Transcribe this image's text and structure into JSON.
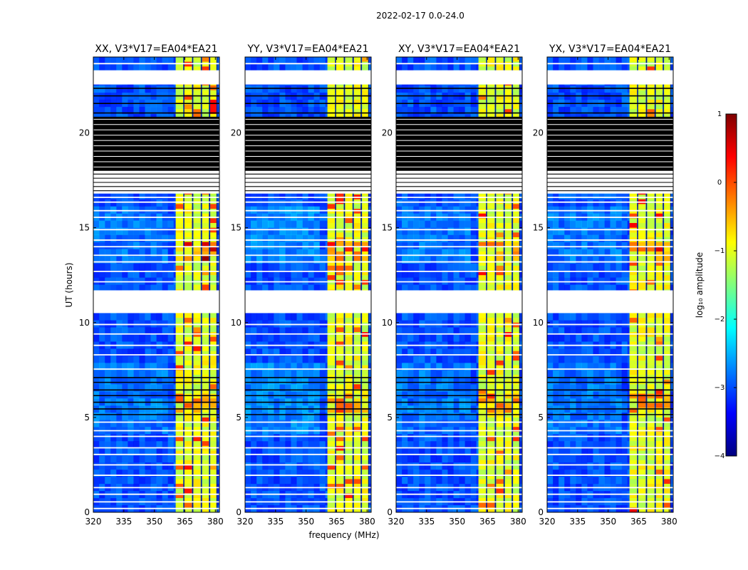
{
  "chart_data": {
    "type": "heatmap",
    "title": "2022-02-17 0.0-24.0",
    "xlabel": "frequency (MHz)",
    "ylabel": "UT (hours)",
    "xlim": [
      320,
      382
    ],
    "ylim": [
      0,
      24
    ],
    "xticks": [
      320,
      335,
      350,
      365,
      380
    ],
    "yticks": [
      0,
      5,
      10,
      15,
      20
    ],
    "colorbar": {
      "label": "log₁₀ amplitude",
      "range": [
        -4,
        1
      ],
      "ticks": [
        1,
        0,
        -1,
        -2,
        -3,
        -4
      ],
      "tick_labels": [
        "1",
        "0",
        "−1",
        "−2",
        "−3",
        "−4"
      ],
      "colormap": [
        "#00007f",
        "#0000ff",
        "#007fff",
        "#00ffff",
        "#7fff7f",
        "#ffff00",
        "#ff7f00",
        "#ff0000",
        "#7f0000"
      ]
    },
    "panels": [
      {
        "title": "XX, V3*V17=EA04*EA21",
        "baseline": "V3*V17",
        "antennas": "EA04*EA21",
        "polarization": "XX",
        "rfi_strength": 1.0
      },
      {
        "title": "YY, V3*V17=EA04*EA21",
        "baseline": "V3*V17",
        "antennas": "EA04*EA21",
        "polarization": "YY",
        "rfi_strength": 1.25
      },
      {
        "title": "XY, V3*V17=EA04*EA21",
        "baseline": "V3*V17",
        "antennas": "EA04*EA21",
        "polarization": "XY",
        "rfi_strength": 1.05
      },
      {
        "title": "YX, V3*V17=EA04*EA21",
        "baseline": "V3*V17",
        "antennas": "EA04*EA21",
        "polarization": "YX",
        "rfi_strength": 0.85
      }
    ],
    "background_log_amplitude": -3.0,
    "rfi_band_mhz": [
      360.5,
      380.5
    ],
    "rfi_columns_mhz": [
      [
        360.5,
        364.2
      ],
      [
        364.8,
        368.5
      ],
      [
        369.2,
        372.8
      ],
      [
        373.5,
        376.8
      ],
      [
        377.5,
        380.5
      ]
    ],
    "rfi_log_amplitude": -1.0,
    "gap_ut_hours": [
      [
        10.5,
        11.7
      ],
      [
        16.8,
        18.0
      ],
      [
        22.55,
        23.3
      ]
    ],
    "flagged_block_ut_hours": [
      [
        17.9,
        20.85
      ]
    ],
    "flag_line_ut_hours": [
      0.2,
      0.55,
      0.95,
      1.3,
      1.95,
      2.5,
      3.05,
      3.4,
      4.0,
      4.3,
      4.75,
      5.15,
      5.45,
      5.8,
      6.15,
      6.45,
      6.85,
      7.1,
      7.55,
      8.3,
      8.8,
      9.4,
      9.9,
      12.15,
      12.7,
      13.2,
      13.55,
      14.0,
      14.35,
      14.9,
      15.55,
      15.9,
      16.35,
      16.6,
      21.05,
      21.55,
      21.95,
      22.35,
      23.65
    ]
  }
}
